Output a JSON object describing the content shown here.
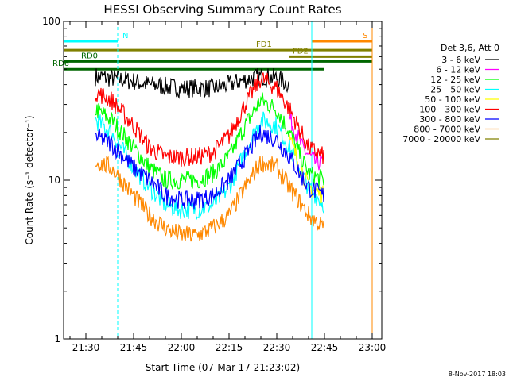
{
  "chart_data": {
    "type": "line",
    "title": "HESSI Observing Summary Count Rates",
    "xlabel": "Start Time (07-Mar-17 21:23:02)",
    "ylabel": "Count Rate (s⁻¹ detector⁻¹)",
    "y_scale": "log",
    "ylim": [
      1,
      100
    ],
    "xlim": [
      "21:23",
      "23:03"
    ],
    "x_ticks": [
      "21:30",
      "21:45",
      "22:00",
      "22:15",
      "22:30",
      "22:45",
      "23:00"
    ],
    "y_ticks": [
      "1",
      "10",
      "100"
    ],
    "legend_title": "Det 3,6, Att 0",
    "legend_placement": "right",
    "footer": "8-Nov-2017 18:03",
    "grid": false,
    "series": [
      {
        "name": "3 - 6 keV",
        "color": "#000000",
        "x": [
          "21:33",
          "21:38",
          "21:45",
          "21:50",
          "22:00",
          "22:10",
          "22:15",
          "22:20",
          "22:25",
          "22:30",
          "22:34"
        ],
        "values": [
          45,
          44,
          42,
          40,
          38,
          38,
          40,
          43,
          45,
          44,
          40
        ]
      },
      {
        "name": "6 - 12 keV",
        "color": "#ff00ff",
        "x": [
          "22:34",
          "22:38",
          "22:42",
          "22:45"
        ],
        "values": [
          25,
          16,
          13,
          13
        ]
      },
      {
        "name": "12 - 25 keV",
        "color": "#00ff00",
        "x": [
          "21:33",
          "21:38",
          "21:45",
          "21:50",
          "21:55",
          "22:00",
          "22:05",
          "22:10",
          "22:15",
          "22:20",
          "22:25",
          "22:30",
          "22:34",
          "22:40",
          "22:45"
        ],
        "values": [
          28,
          24,
          16,
          12,
          10,
          10,
          10,
          11,
          14,
          22,
          32,
          28,
          20,
          11,
          10
        ]
      },
      {
        "name": "25 - 50 keV",
        "color": "#00ffff",
        "x": [
          "21:33",
          "21:38",
          "21:45",
          "21:50",
          "21:55",
          "22:00",
          "22:05",
          "22:10",
          "22:15",
          "22:20",
          "22:25",
          "22:30",
          "22:34",
          "22:40",
          "22:45"
        ],
        "values": [
          24,
          20,
          12,
          9,
          7,
          6.5,
          6.5,
          7,
          9,
          15,
          24,
          22,
          16,
          9,
          7
        ]
      },
      {
        "name": "50 - 100 keV",
        "color": "#ffff00",
        "x": [
          "22:34",
          "22:40",
          "22:45"
        ],
        "values": [
          18,
          9,
          8
        ]
      },
      {
        "name": "100 - 300 keV",
        "color": "#ff0000",
        "x": [
          "21:33",
          "21:38",
          "21:45",
          "21:50",
          "21:55",
          "22:00",
          "22:05",
          "22:10",
          "22:15",
          "22:20",
          "22:25",
          "22:30",
          "22:34",
          "22:40",
          "22:45"
        ],
        "values": [
          36,
          32,
          22,
          16,
          14,
          14,
          14,
          15,
          19,
          30,
          44,
          38,
          28,
          16,
          14
        ]
      },
      {
        "name": "300 - 800 keV",
        "color": "#0000ff",
        "x": [
          "21:33",
          "21:38",
          "21:45",
          "21:50",
          "21:55",
          "22:00",
          "22:05",
          "22:10",
          "22:15",
          "22:20",
          "22:25",
          "22:30",
          "22:34",
          "22:40",
          "22:45"
        ],
        "values": [
          19,
          17,
          12,
          10,
          8,
          7.5,
          7.5,
          8,
          10,
          14,
          20,
          18,
          14,
          9,
          8
        ]
      },
      {
        "name": "800 - 7000 keV",
        "color": "#ff8800",
        "x": [
          "21:33",
          "21:38",
          "21:45",
          "21:50",
          "21:55",
          "22:00",
          "22:05",
          "22:10",
          "22:15",
          "22:20",
          "22:25",
          "22:30",
          "22:34",
          "22:40",
          "22:45"
        ],
        "values": [
          13,
          12,
          8,
          6,
          5,
          4.5,
          4.5,
          5,
          6,
          9,
          13,
          12,
          9,
          6,
          5
        ]
      },
      {
        "name": "7000 - 20000 keV",
        "color": "#808000",
        "x": [],
        "values": []
      }
    ],
    "annotations": [
      {
        "label": "N",
        "color": "#00ffff",
        "level": 75,
        "start": "21:23",
        "end": "21:40"
      },
      {
        "label": "S",
        "color": "#ff8800",
        "level": 75,
        "start": "22:41",
        "end": "23:00"
      },
      {
        "label": "FD1",
        "color": "#808000",
        "level": 66,
        "start": "21:23",
        "end": "23:00"
      },
      {
        "label": "FD2",
        "color": "#808000",
        "level": 60,
        "start": "22:34",
        "end": "23:00"
      },
      {
        "label": "RD0",
        "color": "#006600",
        "level": 56,
        "start": "21:23",
        "end": "23:00"
      },
      {
        "label": "RD6",
        "color": "#006600",
        "level": 50,
        "start": "21:23",
        "end": "22:45"
      }
    ]
  }
}
